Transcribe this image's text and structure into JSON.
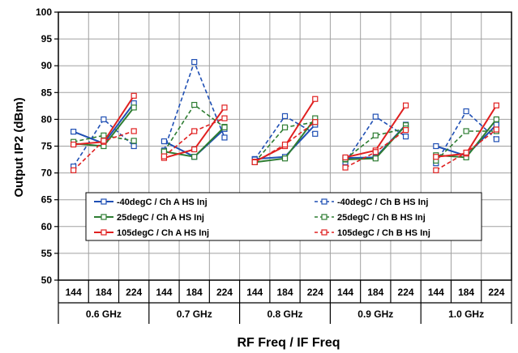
{
  "chart_data": {
    "type": "line",
    "ylabel": "Output IP2 (dBm)",
    "xlabel": "RF Freq / IF Freq",
    "ylim": [
      50,
      100
    ],
    "yticks": [
      50,
      55,
      60,
      65,
      70,
      75,
      80,
      85,
      90,
      95,
      100
    ],
    "grid": true,
    "legend_position": "center-bottom",
    "categories": [
      "144",
      "184",
      "224",
      "144",
      "184",
      "224",
      "144",
      "184",
      "224",
      "144",
      "184",
      "224",
      "144",
      "184",
      "224"
    ],
    "groups": [
      "0.6 GHz",
      "0.7 GHz",
      "0.8 GHz",
      "0.9 GHz",
      "1.0 GHz"
    ],
    "series": [
      {
        "name": "-40degC /  Ch A HS Inj",
        "color": "#1f4fb4",
        "dash": false,
        "values": [
          77.7,
          75.5,
          83.0,
          75.9,
          73.0,
          78.2,
          72.6,
          73.0,
          79.0,
          72.8,
          72.9,
          79.0,
          75.0,
          73.2,
          79.0
        ]
      },
      {
        "name": "-40degC /  Ch B HS Inj",
        "color": "#1f4fb4",
        "dash": true,
        "values": [
          71.2,
          80.0,
          75.0,
          74.2,
          90.7,
          76.6,
          72.5,
          80.6,
          77.3,
          72.0,
          80.5,
          76.8,
          71.8,
          81.5,
          76.3
        ]
      },
      {
        "name": "25degC /  Ch A HS Inj",
        "color": "#2e7d32",
        "dash": false,
        "values": [
          75.5,
          75.0,
          82.2,
          74.0,
          73.0,
          78.6,
          72.0,
          72.7,
          80.2,
          72.5,
          72.7,
          78.9,
          73.3,
          72.9,
          80.0
        ]
      },
      {
        "name": "25degC /  Ch B HS Inj",
        "color": "#2e7d32",
        "dash": true,
        "values": [
          75.8,
          77.0,
          76.0,
          74.0,
          82.7,
          78.5,
          72.0,
          78.5,
          79.5,
          72.6,
          77.0,
          78.3,
          72.3,
          77.8,
          77.8
        ]
      },
      {
        "name": "105degC /  Ch A HS Inj",
        "color": "#e02020",
        "dash": false,
        "values": [
          75.3,
          75.8,
          84.4,
          72.8,
          74.4,
          82.2,
          72.1,
          75.0,
          83.8,
          72.9,
          74.2,
          82.6,
          73.0,
          73.6,
          82.6
        ]
      },
      {
        "name": "105degC /  Ch B HS Inj",
        "color": "#e02020",
        "dash": true,
        "values": [
          70.5,
          76.0,
          77.8,
          73.1,
          77.8,
          80.2,
          72.0,
          75.3,
          79.5,
          71.0,
          73.9,
          78.0,
          70.5,
          73.8,
          78.1
        ]
      }
    ]
  }
}
